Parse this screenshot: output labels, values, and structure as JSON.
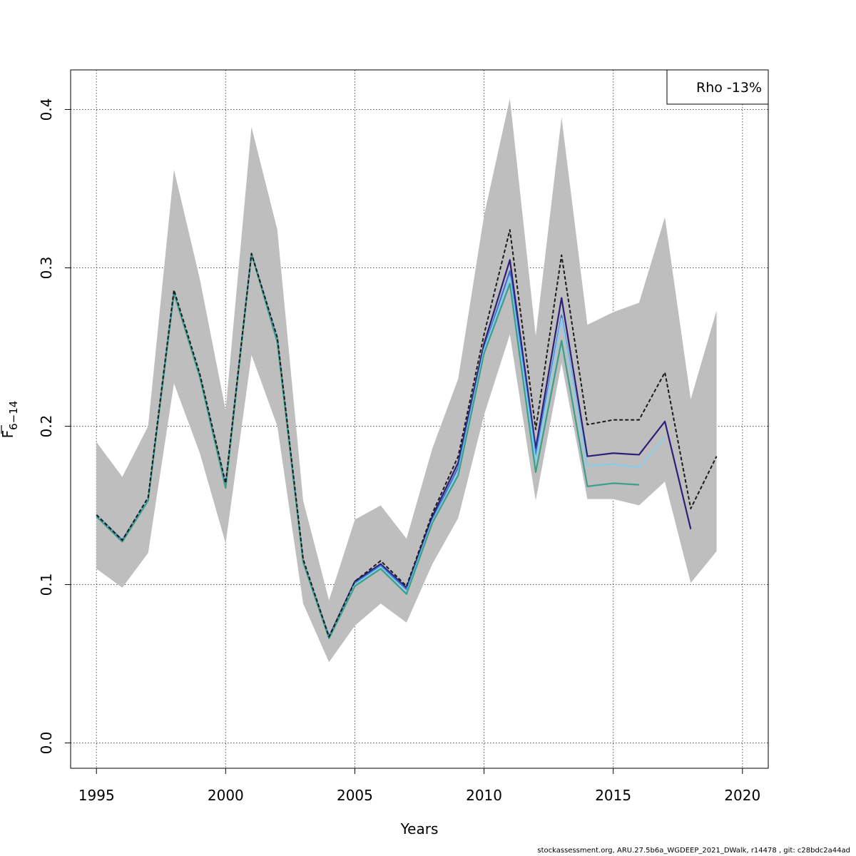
{
  "chart_data": {
    "type": "line",
    "xlabel": "Years",
    "ylabel_main": "F",
    "ylabel_sub": "6−14",
    "xlim": [
      1994,
      2021
    ],
    "ylim": [
      -0.016,
      0.425
    ],
    "xticks": [
      1995,
      2000,
      2005,
      2010,
      2015,
      2020
    ],
    "yticks": [
      0.0,
      0.1,
      0.2,
      0.3,
      0.4
    ],
    "ytick_labels": [
      "0.0",
      "0.1",
      "0.2",
      "0.3",
      "0.4"
    ],
    "grid": true,
    "legend": {
      "text": "Rho -13%",
      "placement": "top-right"
    },
    "band": {
      "x": [
        1995,
        1996,
        1997,
        1998,
        1999,
        2000,
        2001,
        2002,
        2003,
        2004,
        2005,
        2006,
        2007,
        2008,
        2009,
        2010,
        2011,
        2012,
        2013,
        2014,
        2015,
        2016,
        2017,
        2018,
        2019
      ],
      "upper": [
        0.19,
        0.168,
        0.2,
        0.362,
        0.293,
        0.21,
        0.389,
        0.324,
        0.153,
        0.09,
        0.141,
        0.15,
        0.129,
        0.186,
        0.23,
        0.333,
        0.407,
        0.257,
        0.395,
        0.264,
        0.272,
        0.278,
        0.332,
        0.217,
        0.273
      ],
      "lower": [
        0.11,
        0.098,
        0.12,
        0.227,
        0.183,
        0.126,
        0.245,
        0.2,
        0.088,
        0.051,
        0.074,
        0.088,
        0.076,
        0.113,
        0.142,
        0.207,
        0.258,
        0.153,
        0.24,
        0.154,
        0.154,
        0.15,
        0.165,
        0.101,
        0.121
      ],
      "color": "#bebebe"
    },
    "series": [
      {
        "color": "#1a1a1a",
        "dashed": true,
        "width": 2,
        "x": [
          1995,
          1996,
          1997,
          1998,
          1999,
          2000,
          2001,
          2002,
          2003,
          2004,
          2005,
          2006,
          2007,
          2008,
          2009,
          2010,
          2011,
          2012,
          2013,
          2014,
          2015,
          2016,
          2017,
          2018,
          2019
        ],
        "values": [
          0.144,
          0.128,
          0.155,
          0.286,
          0.233,
          0.164,
          0.309,
          0.256,
          0.116,
          0.067,
          0.102,
          0.115,
          0.099,
          0.145,
          0.181,
          0.258,
          0.324,
          0.198,
          0.308,
          0.201,
          0.204,
          0.204,
          0.234,
          0.148,
          0.181
        ]
      },
      {
        "color": "#2d1f78",
        "dashed": false,
        "width": 2.2,
        "x": [
          1995,
          1996,
          1997,
          1998,
          1999,
          2000,
          2001,
          2002,
          2003,
          2004,
          2005,
          2006,
          2007,
          2008,
          2009,
          2010,
          2011,
          2012,
          2013,
          2014,
          2015,
          2016,
          2017,
          2018
        ],
        "values": [
          0.144,
          0.128,
          0.154,
          0.285,
          0.232,
          0.163,
          0.309,
          0.255,
          0.115,
          0.067,
          0.102,
          0.113,
          0.098,
          0.143,
          0.177,
          0.252,
          0.305,
          0.186,
          0.281,
          0.181,
          0.183,
          0.182,
          0.203,
          0.135
        ]
      },
      {
        "color": "#3a6fd8",
        "dashed": false,
        "width": 2,
        "x": [
          1995,
          1996,
          1997,
          1998,
          1999,
          2000,
          2001,
          2002,
          2003,
          2004,
          2005,
          2006,
          2007,
          2008,
          2009,
          2010,
          2011,
          2012,
          2013,
          2014,
          2015,
          2016
        ],
        "values": [
          0.144,
          0.128,
          0.154,
          0.285,
          0.232,
          0.163,
          0.309,
          0.255,
          0.115,
          0.067,
          0.101,
          0.112,
          0.097,
          0.141,
          0.174,
          0.249,
          0.298,
          0.182,
          0.27,
          0.175,
          0.176,
          0.174
        ]
      },
      {
        "color": "#87ceeb",
        "dashed": false,
        "width": 2.2,
        "x": [
          1995,
          1996,
          1997,
          1998,
          1999,
          2000,
          2001,
          2002,
          2003,
          2004,
          2005,
          2006,
          2007,
          2008,
          2009,
          2010,
          2011,
          2012,
          2013,
          2014,
          2015,
          2016,
          2017
        ],
        "values": [
          0.144,
          0.127,
          0.154,
          0.285,
          0.232,
          0.162,
          0.309,
          0.254,
          0.115,
          0.066,
          0.1,
          0.111,
          0.095,
          0.14,
          0.171,
          0.248,
          0.294,
          0.178,
          0.268,
          0.175,
          0.176,
          0.174,
          0.193
        ]
      },
      {
        "color": "#3aa08a",
        "dashed": false,
        "width": 2.2,
        "x": [
          1995,
          1996,
          1997,
          1998,
          1999,
          2000,
          2001,
          2002,
          2003,
          2004,
          2005,
          2006,
          2007,
          2008,
          2009,
          2010,
          2011,
          2012,
          2013,
          2014,
          2015,
          2016
        ],
        "values": [
          0.143,
          0.127,
          0.153,
          0.284,
          0.231,
          0.161,
          0.309,
          0.253,
          0.114,
          0.066,
          0.099,
          0.11,
          0.094,
          0.139,
          0.169,
          0.246,
          0.29,
          0.171,
          0.254,
          0.162,
          0.164,
          0.163
        ]
      }
    ]
  },
  "footer": "stockassessment.org, ARU.27.5b6a_WGDEEP_2021_DWalk, r14478 , git: c28bdc2a44ad"
}
